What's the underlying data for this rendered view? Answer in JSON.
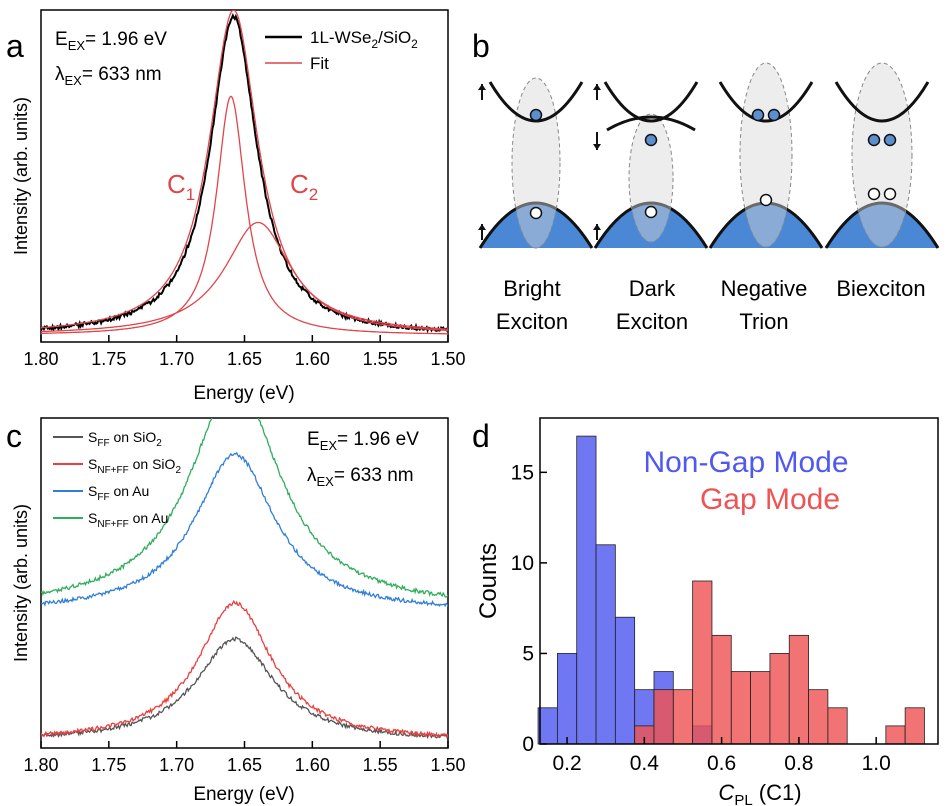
{
  "chart_data": [
    {
      "panel": "a",
      "type": "line",
      "xlabel": "Energy (eV)",
      "ylabel": "Intensity (arb. units)",
      "xlim": [
        1.8,
        1.5
      ],
      "x_reversed": true,
      "x_ticks": [
        "1.80",
        "1.75",
        "1.70",
        "1.65",
        "1.60",
        "1.55",
        "1.50"
      ],
      "annotations": {
        "excitation_energy": {
          "sym": "E",
          "sub": "EX",
          "rest": "= 1.96 eV"
        },
        "excitation_wavelength": {
          "sym": "λ",
          "sub": "EX",
          "rest": "= 633 nm"
        },
        "peak_1": {
          "sym": "C",
          "sub": "1"
        },
        "peak_2": {
          "sym": "C",
          "sub": "2"
        }
      },
      "legend": [
        {
          "pre": "1L-WSe",
          "sub": "2",
          "post": "/SiO",
          "sub2": "2",
          "color": "#000000"
        },
        {
          "pre": "Fit",
          "sub": "",
          "post": "",
          "sub2": "",
          "color": "#e0454a"
        }
      ],
      "series": [
        {
          "name": "1L-WSe2/SiO2",
          "kind": "data",
          "color": "#000000",
          "center": 1.658,
          "width": 0.021,
          "amp": 0.96,
          "base": 0.02
        },
        {
          "name": "Fit",
          "kind": "fit-total",
          "color": "#e0454a",
          "center": 1.658,
          "width": 0.022,
          "amp": 0.98,
          "base": 0.02
        },
        {
          "name": "C1",
          "kind": "fit-component",
          "color": "#e0454a",
          "center": 1.66,
          "width": 0.013,
          "amp": 0.72,
          "base": 0.02
        },
        {
          "name": "C2",
          "kind": "fit-component",
          "color": "#e0454a",
          "center": 1.64,
          "width": 0.03,
          "amp": 0.34,
          "base": 0.02
        }
      ]
    },
    {
      "panel": "c",
      "type": "line",
      "xlabel": "Energy (eV)",
      "ylabel": "Intensity (arb. units)",
      "xlim": [
        1.8,
        1.5
      ],
      "x_reversed": true,
      "x_ticks": [
        "1.80",
        "1.75",
        "1.70",
        "1.65",
        "1.60",
        "1.55",
        "1.50"
      ],
      "annotations": {
        "excitation_energy": {
          "sym": "E",
          "sub": "EX",
          "rest": "= 1.96 eV"
        },
        "excitation_wavelength": {
          "sym": "λ",
          "sub": "EX",
          "rest": "= 633 nm"
        }
      },
      "series": [
        {
          "pre": "S",
          "sub": "FF",
          "post": " on SiO",
          "sub2": "2",
          "color": "#555555",
          "center": 1.657,
          "width": 0.035,
          "amp": 0.31,
          "base": 0.02
        },
        {
          "pre": "S",
          "sub": "NF+FF",
          "post": " on SiO",
          "sub2": "2",
          "color": "#e8403f",
          "center": 1.657,
          "width": 0.033,
          "amp": 0.42,
          "base": 0.02
        },
        {
          "pre": "S",
          "sub": "FF",
          "post": " on Au",
          "sub2": "",
          "color": "#2f7fd8",
          "center": 1.657,
          "width": 0.036,
          "amp": 0.48,
          "base": 0.41
        },
        {
          "pre": "S",
          "sub": "NF+FF",
          "post": " on Au",
          "sub2": "",
          "color": "#2fae5b",
          "center": 1.657,
          "width": 0.04,
          "amp": 0.69,
          "base": 0.42
        }
      ]
    },
    {
      "panel": "d",
      "type": "bar",
      "subtype": "histogram",
      "xlabel_sym": "C",
      "xlabel_sub": "PL",
      "xlabel_rest": " (C1)",
      "ylabel": "Counts",
      "xlim": [
        0.13,
        1.16
      ],
      "ylim": [
        0,
        18
      ],
      "x_ticks": [
        0.2,
        0.4,
        0.6,
        0.8,
        1.0
      ],
      "x_tick_labels": [
        "0.2",
        "0.4",
        "0.6",
        "0.8",
        "1.0"
      ],
      "y_ticks": [
        0,
        5,
        10,
        15
      ],
      "y_tick_labels": [
        "0",
        "5",
        "10",
        "15"
      ],
      "bin_width": 0.05,
      "series": [
        {
          "name": "Non-Gap Mode",
          "color": "#4f59f0",
          "bins": [
            [
              0.15,
              2
            ],
            [
              0.2,
              5
            ],
            [
              0.25,
              17
            ],
            [
              0.3,
              11
            ],
            [
              0.35,
              7
            ],
            [
              0.4,
              3
            ],
            [
              0.45,
              4
            ],
            [
              0.55,
              1
            ]
          ]
        },
        {
          "name": "Gap Mode",
          "color": "#ee5454",
          "bins": [
            [
              0.4,
              1
            ],
            [
              0.45,
              3
            ],
            [
              0.5,
              3
            ],
            [
              0.55,
              9
            ],
            [
              0.6,
              6
            ],
            [
              0.65,
              4
            ],
            [
              0.7,
              4
            ],
            [
              0.75,
              5
            ],
            [
              0.8,
              6
            ],
            [
              0.85,
              3
            ],
            [
              0.9,
              2
            ],
            [
              1.05,
              1
            ],
            [
              1.1,
              2
            ]
          ]
        }
      ]
    }
  ],
  "panel_b": {
    "label": "b",
    "columns": [
      {
        "line1": "Bright",
        "line2": "Exciton"
      },
      {
        "line1": "Dark",
        "line2": "Exciton"
      },
      {
        "line1": "Negative",
        "line2": "Trion"
      },
      {
        "line1": "Biexciton",
        "line2": ""
      }
    ],
    "colors": {
      "band": "#4a88d6",
      "particle": "#5b8fd0"
    }
  },
  "panel_labels": [
    "a",
    "b",
    "c",
    "d"
  ]
}
